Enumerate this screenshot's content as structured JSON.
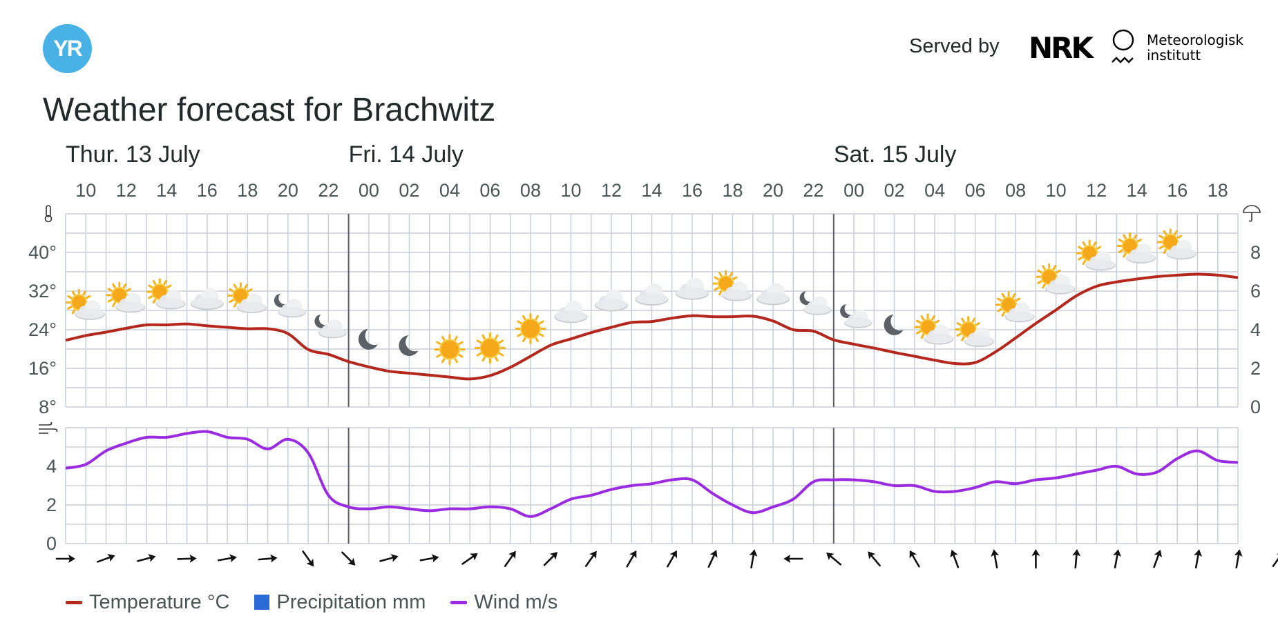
{
  "header": {
    "logo_text": "YR",
    "served_by": "Served by",
    "nrk_logo": "NRK",
    "met_line1": "Meteorologisk",
    "met_line2": "institutt"
  },
  "title": "Weather forecast for Brachwitz",
  "colors": {
    "temperature": "#b3271c",
    "precipitation": "#2a6ad6",
    "wind": "#9b2be0",
    "grid": "#c8ced8",
    "day_divider": "#5a5f66",
    "axis_text": "#4a5558"
  },
  "legend": {
    "temperature": "Temperature °C",
    "precipitation": "Precipitation mm",
    "wind": "Wind m/s"
  },
  "chart_data": {
    "type": "line",
    "days": [
      {
        "label": "Thur. 13 July",
        "hour_index": 0
      },
      {
        "label": "Fri. 14 July",
        "hour_index": 14
      },
      {
        "label": "Sat. 15 July",
        "hour_index": 38
      }
    ],
    "day_boundaries": [
      14,
      38
    ],
    "hour_labels": [
      "10",
      "12",
      "14",
      "16",
      "18",
      "20",
      "22",
      "00",
      "02",
      "04",
      "06",
      "08",
      "10",
      "12",
      "14",
      "16",
      "18",
      "20",
      "22",
      "00",
      "02",
      "04",
      "06",
      "08",
      "10",
      "12",
      "14",
      "16",
      "18"
    ],
    "temperature": {
      "name": "Temperature °C",
      "ylim": [
        8,
        48
      ],
      "ticks": [
        "8°",
        "16°",
        "24°",
        "32°",
        "40°"
      ],
      "values": [
        21.8,
        22.8,
        23.5,
        24.3,
        25.0,
        25.0,
        25.2,
        24.8,
        24.5,
        24.2,
        24.2,
        23.2,
        19.9,
        18.9,
        17.4,
        16.3,
        15.4,
        15.0,
        14.6,
        14.2,
        13.8,
        14.5,
        16.2,
        18.5,
        20.8,
        22.1,
        23.4,
        24.5,
        25.5,
        25.7,
        26.4,
        26.9,
        26.7,
        26.7,
        26.8,
        25.8,
        24.0,
        23.7,
        21.9,
        21.0,
        20.2,
        19.3,
        18.5,
        17.7,
        17.0,
        17.2,
        19.4,
        22.3,
        25.3,
        28.1,
        31.0,
        33.0,
        33.9,
        34.5,
        35.0,
        35.3,
        35.5,
        35.3,
        34.8
      ]
    },
    "precipitation": {
      "name": "Precipitation mm",
      "ylim": [
        0,
        10
      ],
      "ticks": [
        "0",
        "2",
        "4",
        "6",
        "8"
      ],
      "values": []
    },
    "wind": {
      "name": "Wind m/s",
      "ylim": [
        0,
        6
      ],
      "ticks": [
        "0",
        "2",
        "4"
      ],
      "values": [
        3.9,
        4.1,
        4.8,
        5.2,
        5.5,
        5.5,
        5.7,
        5.8,
        5.5,
        5.4,
        4.9,
        5.4,
        4.7,
        2.5,
        1.9,
        1.8,
        1.9,
        1.8,
        1.7,
        1.8,
        1.8,
        1.9,
        1.8,
        1.4,
        1.8,
        2.3,
        2.5,
        2.8,
        3.0,
        3.1,
        3.3,
        3.3,
        2.6,
        2.0,
        1.6,
        1.9,
        2.3,
        3.2,
        3.3,
        3.3,
        3.2,
        3.0,
        3.0,
        2.7,
        2.7,
        2.9,
        3.2,
        3.1,
        3.3,
        3.4,
        3.6,
        3.8,
        4.0,
        3.6,
        3.7,
        4.4,
        4.8,
        4.3,
        4.2
      ]
    },
    "weather_symbols": [
      "sun-partly-cloudy",
      "sun-partly-cloudy",
      "sun-partly-cloudy",
      "cloudy",
      "sun-partly-cloudy",
      "moon-partly-cloudy",
      "moon-partly-cloudy",
      "moon",
      "moon",
      "sun",
      "sun",
      "sun",
      "cloudy",
      "cloudy",
      "cloudy",
      "cloudy",
      "sun-partly-cloudy",
      "cloudy",
      "moon-partly-cloudy",
      "moon-partly-cloudy",
      "moon",
      "sun-partly-cloudy",
      "sun-partly-cloudy",
      "sun-partly-cloudy",
      "sun-partly-cloudy",
      "sun-partly-cloudy",
      "sun-partly-cloudy",
      "sun-partly-cloudy"
    ],
    "wind_direction_deg": [
      90,
      70,
      75,
      88,
      80,
      85,
      145,
      135,
      75,
      80,
      55,
      35,
      45,
      35,
      30,
      30,
      25,
      10,
      270,
      310,
      320,
      330,
      340,
      350,
      0,
      5,
      10,
      20,
      10,
      10,
      35
    ]
  }
}
